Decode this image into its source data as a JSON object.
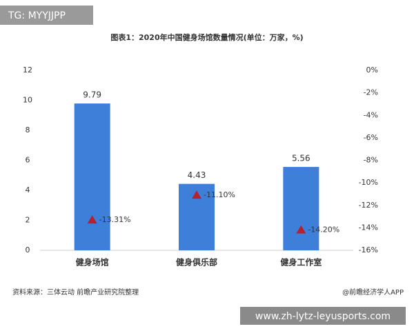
{
  "chart_data": {
    "type": "bar",
    "title": "图表1：2020年中国健身场馆数量情况(单位：万家，%)",
    "categories": [
      "健身场馆",
      "健身俱乐部",
      "健身工作室"
    ],
    "series": [
      {
        "color": "#3d7fd9",
        "values": [
          9.79,
          4.43,
          5.56
        ]
      },
      {
        "color": "#b5222d",
        "marker": "triangle",
        "axis": "y2",
        "values": [
          -13.31,
          -11.1,
          -14.2
        ],
        "value_labels": [
          "-13.31%",
          "-11.10%",
          "-14.20%"
        ]
      }
    ],
    "ylim": [
      0,
      12
    ],
    "yticks": [
      0,
      2,
      4,
      6,
      8,
      10,
      12
    ],
    "y2lim": [
      -16,
      0
    ],
    "y2ticks": [
      {
        "value": 0,
        "label": "0%"
      },
      {
        "value": -2,
        "label": "-2%"
      },
      {
        "value": -4,
        "label": "-4%"
      },
      {
        "value": -6,
        "label": "-6%"
      },
      {
        "value": -8,
        "label": "-8%"
      },
      {
        "value": -10,
        "label": "-10%"
      },
      {
        "value": -12,
        "label": "-12%"
      },
      {
        "value": -14,
        "label": "-14%"
      },
      {
        "value": -16,
        "label": "-16%"
      }
    ],
    "grid": false,
    "source": "资料来源：三体云动 前瞻产业研究院整理",
    "credit": "@前瞻经济学人APP"
  },
  "overlay": {
    "tag": "TG: MYYJJPP",
    "banner": "www.zh-lytz-leyusports.com"
  }
}
